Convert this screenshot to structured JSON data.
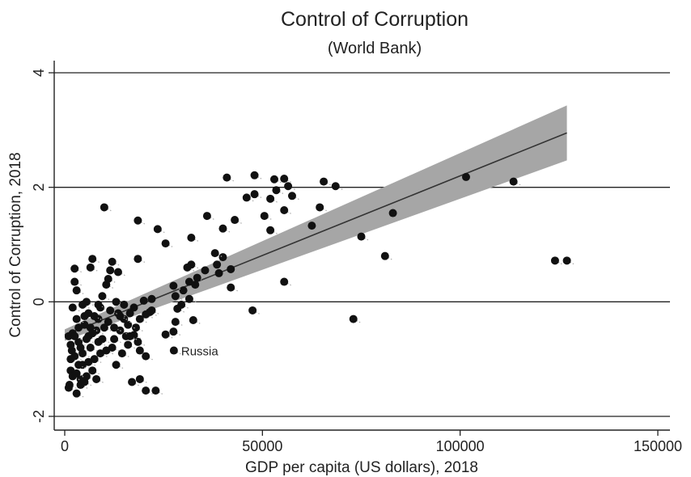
{
  "chart_data": {
    "type": "scatter",
    "title": "Control of Corruption",
    "subtitle": "(World Bank)",
    "xlabel": "GDP per capita (US dollars), 2018",
    "ylabel": "Control of Corruption, 2018",
    "xlim": [
      0,
      150000
    ],
    "ylim": [
      -2,
      4
    ],
    "xticks": [
      0,
      50000,
      100000,
      150000
    ],
    "yticks": [
      -2,
      0,
      2,
      4
    ],
    "xtick_labels": [
      "0",
      "50000",
      "100000",
      "150000"
    ],
    "ytick_labels": [
      "-2",
      "0",
      "2",
      "4"
    ],
    "grid": "horizontal",
    "legend": "none",
    "colors": {
      "points": "#111111",
      "fit_line": "#333333",
      "ci_band": "#a6a6a6",
      "grid": "#222222"
    },
    "fit": {
      "type": "linear",
      "x": [
        0,
        127000
      ],
      "y": [
        -0.58,
        2.95
      ],
      "ci_lower": [
        -0.68,
        2.47
      ],
      "ci_upper": [
        -0.48,
        3.43
      ]
    },
    "annotations": [
      {
        "text": "Russia",
        "x": 27600,
        "y": -0.85
      }
    ],
    "points": [
      {
        "x": 10000,
        "y": 1.65
      },
      {
        "x": 18500,
        "y": 1.42
      },
      {
        "x": 23500,
        "y": 1.27
      },
      {
        "x": 25500,
        "y": 1.02
      },
      {
        "x": 32000,
        "y": 1.12
      },
      {
        "x": 36000,
        "y": 1.5
      },
      {
        "x": 40000,
        "y": 1.28
      },
      {
        "x": 41000,
        "y": 2.17
      },
      {
        "x": 48000,
        "y": 2.21
      },
      {
        "x": 43000,
        "y": 1.43
      },
      {
        "x": 46000,
        "y": 1.82
      },
      {
        "x": 48000,
        "y": 1.88
      },
      {
        "x": 50500,
        "y": 1.5
      },
      {
        "x": 52000,
        "y": 1.25
      },
      {
        "x": 52000,
        "y": 1.8
      },
      {
        "x": 53500,
        "y": 1.95
      },
      {
        "x": 53000,
        "y": 2.14
      },
      {
        "x": 55500,
        "y": 2.15
      },
      {
        "x": 56500,
        "y": 2.02
      },
      {
        "x": 57500,
        "y": 1.85
      },
      {
        "x": 55500,
        "y": 1.6
      },
      {
        "x": 62500,
        "y": 1.33
      },
      {
        "x": 64500,
        "y": 1.65
      },
      {
        "x": 65500,
        "y": 2.1
      },
      {
        "x": 68500,
        "y": 2.02
      },
      {
        "x": 75000,
        "y": 1.14
      },
      {
        "x": 83000,
        "y": 1.55
      },
      {
        "x": 81000,
        "y": 0.8
      },
      {
        "x": 101500,
        "y": 2.18
      },
      {
        "x": 113500,
        "y": 2.1
      },
      {
        "x": 124000,
        "y": 0.72
      },
      {
        "x": 127000,
        "y": 0.72
      },
      {
        "x": 73000,
        "y": -0.3
      },
      {
        "x": 55500,
        "y": 0.35
      },
      {
        "x": 47500,
        "y": -0.15
      },
      {
        "x": 42000,
        "y": 0.57
      },
      {
        "x": 42000,
        "y": 0.25
      },
      {
        "x": 39000,
        "y": 0.5
      },
      {
        "x": 40000,
        "y": 0.78
      },
      {
        "x": 38000,
        "y": 0.85
      },
      {
        "x": 38500,
        "y": 0.65
      },
      {
        "x": 35500,
        "y": 0.55
      },
      {
        "x": 33500,
        "y": 0.42
      },
      {
        "x": 32000,
        "y": 0.65
      },
      {
        "x": 31000,
        "y": 0.6
      },
      {
        "x": 31500,
        "y": 0.35
      },
      {
        "x": 33000,
        "y": 0.3
      },
      {
        "x": 30000,
        "y": 0.2
      },
      {
        "x": 31500,
        "y": 0.05
      },
      {
        "x": 32500,
        "y": -0.32
      },
      {
        "x": 29500,
        "y": -0.05
      },
      {
        "x": 28000,
        "y": 0.1
      },
      {
        "x": 27500,
        "y": 0.28
      },
      {
        "x": 28500,
        "y": -0.12
      },
      {
        "x": 28000,
        "y": -0.35
      },
      {
        "x": 27500,
        "y": -0.52
      },
      {
        "x": 25500,
        "y": -0.57
      },
      {
        "x": 27600,
        "y": -0.85
      },
      {
        "x": 22000,
        "y": 0.05
      },
      {
        "x": 21500,
        "y": -0.18
      },
      {
        "x": 20500,
        "y": -0.22
      },
      {
        "x": 20000,
        "y": 0.02
      },
      {
        "x": 18500,
        "y": 0.75
      },
      {
        "x": 19000,
        "y": -0.3
      },
      {
        "x": 18000,
        "y": -0.45
      },
      {
        "x": 17500,
        "y": -0.58
      },
      {
        "x": 18500,
        "y": -0.7
      },
      {
        "x": 19000,
        "y": -0.85
      },
      {
        "x": 20500,
        "y": -0.95
      },
      {
        "x": 17000,
        "y": -1.4
      },
      {
        "x": 19000,
        "y": -1.35
      },
      {
        "x": 20500,
        "y": -1.55
      },
      {
        "x": 23000,
        "y": -1.55
      },
      {
        "x": 16000,
        "y": -0.4
      },
      {
        "x": 15500,
        "y": -0.6
      },
      {
        "x": 16000,
        "y": -0.75
      },
      {
        "x": 14500,
        "y": -0.9
      },
      {
        "x": 15000,
        "y": -0.3
      },
      {
        "x": 14000,
        "y": -0.5
      },
      {
        "x": 13500,
        "y": -0.2
      },
      {
        "x": 13000,
        "y": 0.0
      },
      {
        "x": 12500,
        "y": -0.65
      },
      {
        "x": 12000,
        "y": 0.7
      },
      {
        "x": 11500,
        "y": 0.55
      },
      {
        "x": 13500,
        "y": 0.52
      },
      {
        "x": 10500,
        "y": 0.3
      },
      {
        "x": 11000,
        "y": 0.4
      },
      {
        "x": 9500,
        "y": 0.1
      },
      {
        "x": 9000,
        "y": -0.1
      },
      {
        "x": 8500,
        "y": -0.3
      },
      {
        "x": 8000,
        "y": -0.5
      },
      {
        "x": 8500,
        "y": -0.7
      },
      {
        "x": 9000,
        "y": -0.9
      },
      {
        "x": 7500,
        "y": -1.0
      },
      {
        "x": 7000,
        "y": -1.2
      },
      {
        "x": 6500,
        "y": -0.8
      },
      {
        "x": 6000,
        "y": -0.6
      },
      {
        "x": 7000,
        "y": 0.75
      },
      {
        "x": 6500,
        "y": 0.6
      },
      {
        "x": 6000,
        "y": -0.2
      },
      {
        "x": 5500,
        "y": 0.0
      },
      {
        "x": 5000,
        "y": -0.4
      },
      {
        "x": 4500,
        "y": -0.9
      },
      {
        "x": 4500,
        "y": -1.1
      },
      {
        "x": 4000,
        "y": -1.35
      },
      {
        "x": 3500,
        "y": -0.7
      },
      {
        "x": 3000,
        "y": -0.3
      },
      {
        "x": 3000,
        "y": 0.2
      },
      {
        "x": 2500,
        "y": 0.58
      },
      {
        "x": 2500,
        "y": 0.35
      },
      {
        "x": 2000,
        "y": -0.1
      },
      {
        "x": 2000,
        "y": -0.55
      },
      {
        "x": 1800,
        "y": -0.85
      },
      {
        "x": 1500,
        "y": -1.0
      },
      {
        "x": 1500,
        "y": -1.2
      },
      {
        "x": 1200,
        "y": -1.45
      },
      {
        "x": 1000,
        "y": -0.6
      },
      {
        "x": 1000,
        "y": -1.5
      },
      {
        "x": 3000,
        "y": -1.6
      },
      {
        "x": 4000,
        "y": -1.45
      },
      {
        "x": 5000,
        "y": -1.4
      },
      {
        "x": 5500,
        "y": -1.3
      },
      {
        "x": 3500,
        "y": -1.1
      },
      {
        "x": 2500,
        "y": -0.95
      },
      {
        "x": 4500,
        "y": -0.05
      },
      {
        "x": 5500,
        "y": -0.65
      },
      {
        "x": 6500,
        "y": -0.45
      },
      {
        "x": 7500,
        "y": -0.25
      },
      {
        "x": 8500,
        "y": -0.05
      },
      {
        "x": 10000,
        "y": -0.45
      },
      {
        "x": 11000,
        "y": -0.35
      },
      {
        "x": 12000,
        "y": -0.8
      },
      {
        "x": 13000,
        "y": -1.1
      },
      {
        "x": 14000,
        "y": -0.25
      },
      {
        "x": 15000,
        "y": -0.05
      },
      {
        "x": 16500,
        "y": -0.2
      },
      {
        "x": 17500,
        "y": -0.1
      },
      {
        "x": 9500,
        "y": -0.65
      },
      {
        "x": 10500,
        "y": -0.85
      },
      {
        "x": 3500,
        "y": -0.45
      },
      {
        "x": 2000,
        "y": -1.3
      },
      {
        "x": 1500,
        "y": -0.75
      },
      {
        "x": 6000,
        "y": -1.05
      },
      {
        "x": 4000,
        "y": -0.8
      },
      {
        "x": 2500,
        "y": -0.6
      },
      {
        "x": 5000,
        "y": -0.25
      },
      {
        "x": 7000,
        "y": -0.55
      },
      {
        "x": 11500,
        "y": -0.15
      },
      {
        "x": 12500,
        "y": -0.45
      },
      {
        "x": 16500,
        "y": -0.6
      },
      {
        "x": 8000,
        "y": -1.35
      },
      {
        "x": 3000,
        "y": -1.25
      },
      {
        "x": 22000,
        "y": -0.15
      }
    ]
  }
}
